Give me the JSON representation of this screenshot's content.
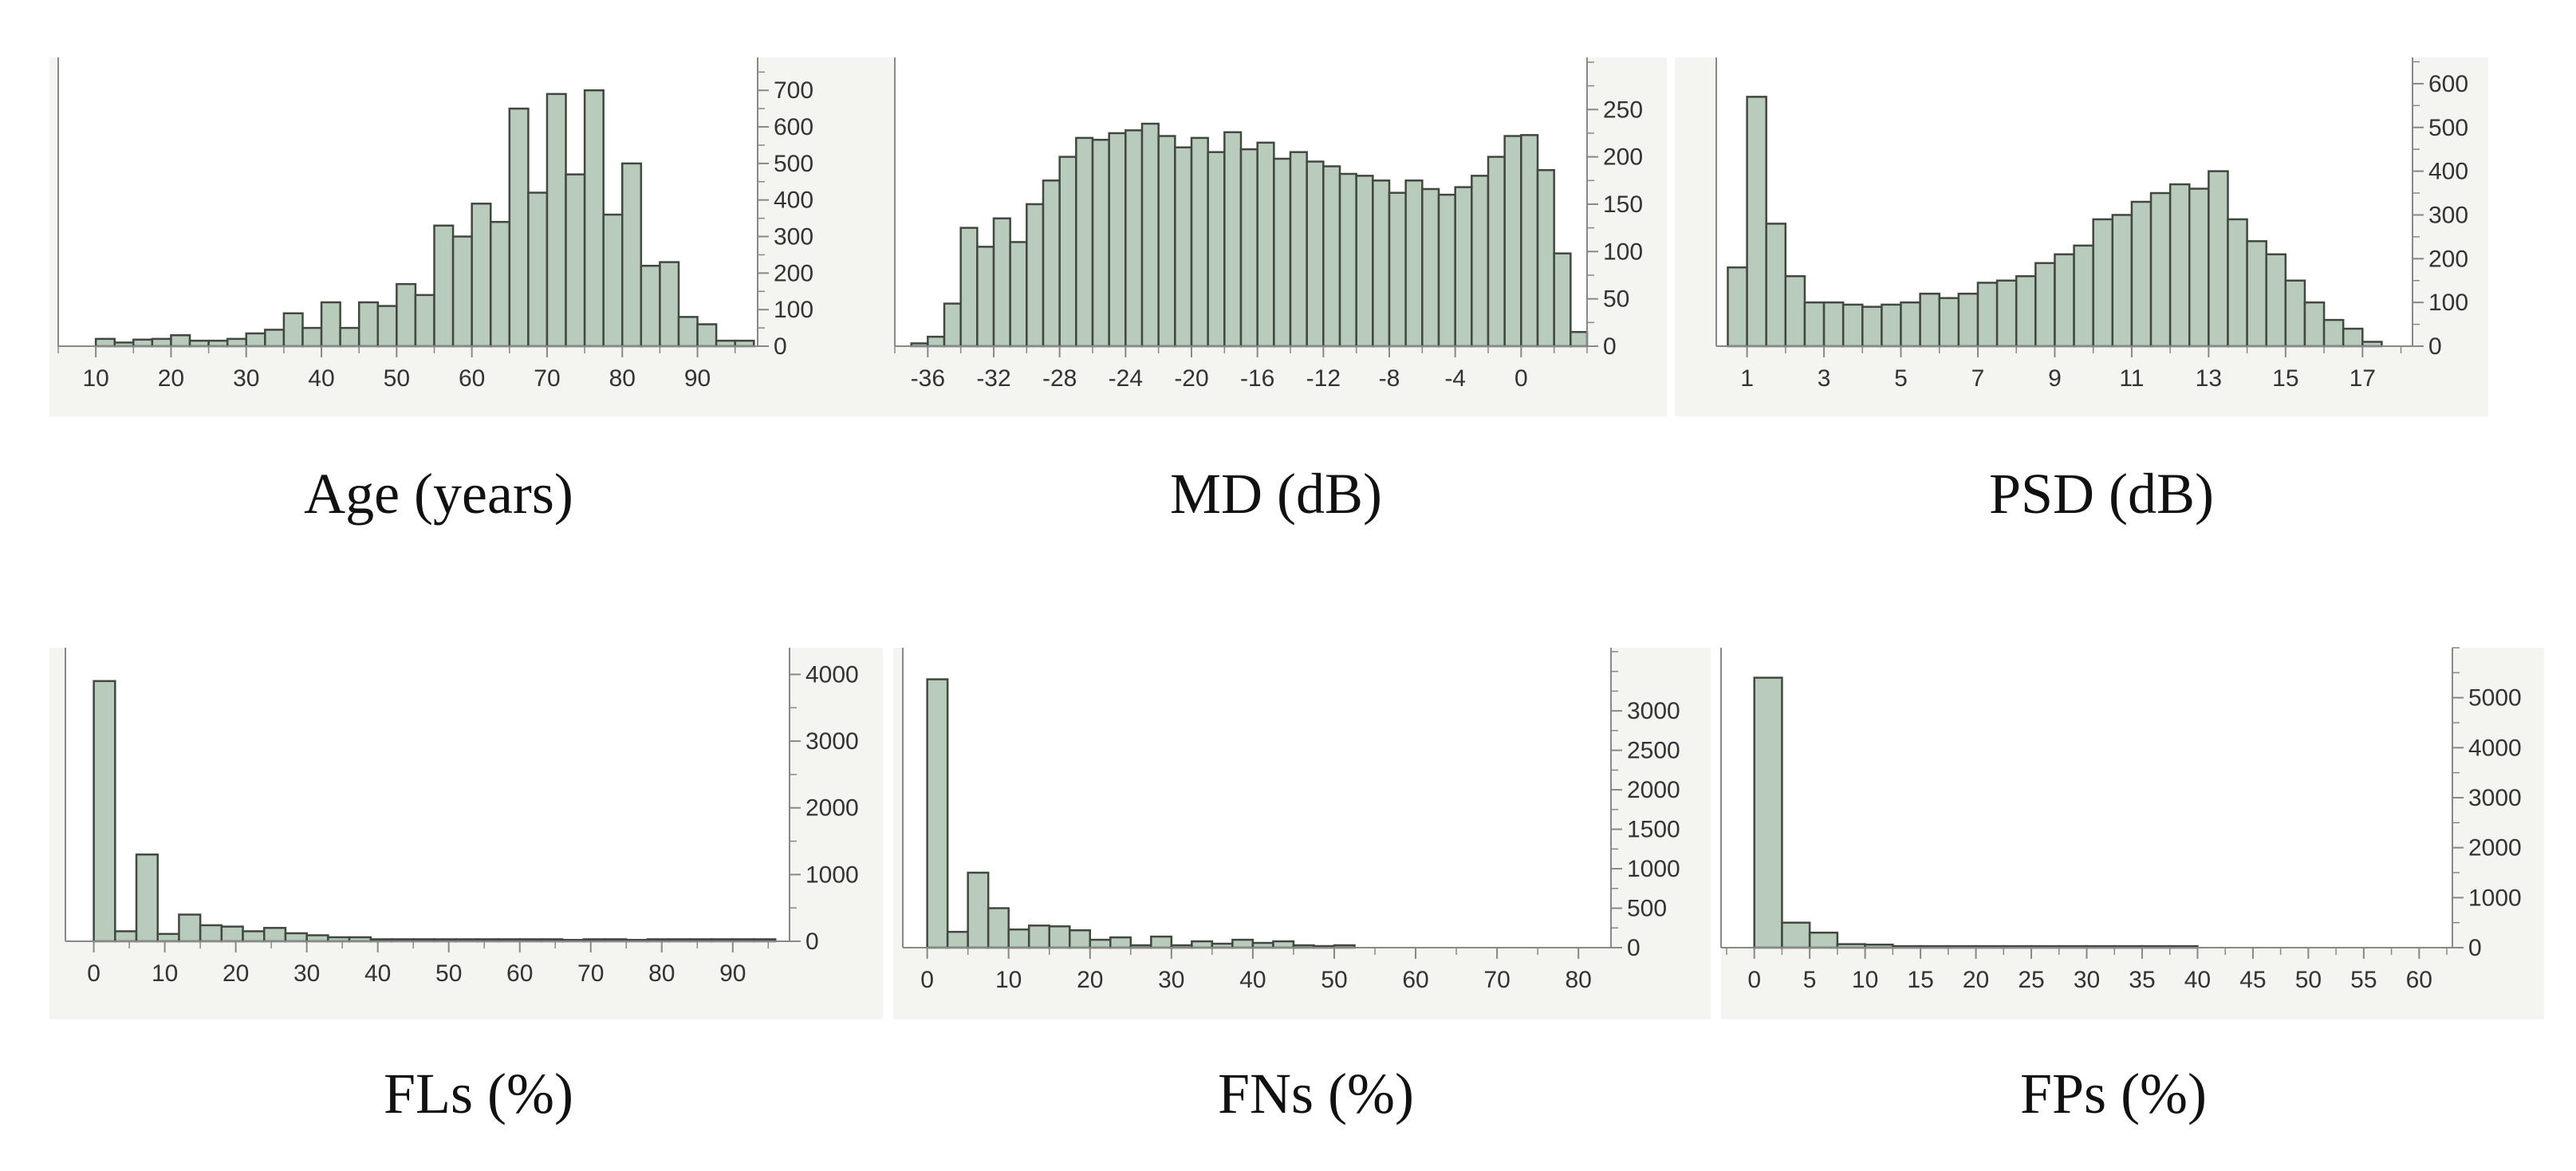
{
  "colors": {
    "bar_fill": "#b9ccbc",
    "bar_stroke": "#404840",
    "axis": "#888888",
    "plot_bg": "#f4f4f0"
  },
  "chart_data": [
    {
      "type": "bar",
      "title": "Age (years)",
      "xlabel": "Age (years)",
      "ylabel": "",
      "bin_width": 2.5,
      "bin_start": 10,
      "values": [
        20,
        10,
        18,
        20,
        30,
        15,
        15,
        20,
        35,
        45,
        90,
        50,
        120,
        50,
        120,
        110,
        170,
        140,
        330,
        300,
        390,
        340,
        650,
        420,
        690,
        470,
        700,
        360,
        500,
        220,
        230,
        80,
        60,
        15,
        15
      ],
      "xlim": [
        5,
        98
      ],
      "ylim": [
        0,
        790
      ],
      "xticks": [
        10,
        20,
        30,
        40,
        50,
        60,
        70,
        80,
        90
      ],
      "yticks": [
        0,
        100,
        200,
        300,
        400,
        500,
        600,
        700
      ],
      "xtick_labels": [
        "10",
        "20",
        "30",
        "40",
        "50",
        "60",
        "70",
        "80",
        "90"
      ],
      "ytick_labels": [
        "0",
        "100",
        "200",
        "300",
        "400",
        "500",
        "600",
        "700"
      ]
    },
    {
      "type": "bar",
      "title": "MD (dB)",
      "xlabel": "MD (dB)",
      "ylabel": "",
      "bin_width": 1,
      "bin_start": -37,
      "values": [
        3,
        10,
        45,
        125,
        105,
        135,
        110,
        150,
        175,
        200,
        220,
        218,
        225,
        228,
        235,
        222,
        210,
        220,
        205,
        226,
        208,
        215,
        198,
        205,
        195,
        190,
        182,
        180,
        175,
        162,
        175,
        166,
        160,
        168,
        180,
        200,
        222,
        223,
        186,
        98,
        15
      ],
      "xlim": [
        -38,
        4
      ],
      "ylim": [
        0,
        305
      ],
      "xticks": [
        -36,
        -32,
        -28,
        -24,
        -20,
        -16,
        -12,
        -8,
        -4,
        0
      ],
      "yticks": [
        0,
        50,
        100,
        150,
        200,
        250
      ],
      "xtick_labels": [
        "-36",
        "-32",
        "-28",
        "-24",
        "-20",
        "-16",
        "-12",
        "-8",
        "-4",
        "0"
      ],
      "ytick_labels": [
        "0",
        "50",
        "100",
        "150",
        "200",
        "250"
      ]
    },
    {
      "type": "bar",
      "title": "PSD (dB)",
      "xlabel": "PSD (dB)",
      "ylabel": "",
      "bin_width": 0.5,
      "bin_start": 0.5,
      "values": [
        180,
        570,
        280,
        160,
        100,
        100,
        95,
        90,
        95,
        100,
        120,
        110,
        120,
        145,
        150,
        160,
        190,
        210,
        230,
        290,
        300,
        330,
        350,
        370,
        360,
        400,
        290,
        240,
        210,
        150,
        100,
        60,
        40,
        10
      ],
      "xlim": [
        0.2,
        18.3
      ],
      "ylim": [
        0,
        660
      ],
      "xticks": [
        1,
        3,
        5,
        7,
        9,
        11,
        13,
        15,
        17
      ],
      "yticks": [
        0,
        100,
        200,
        300,
        400,
        500,
        600
      ],
      "xtick_labels": [
        "1",
        "3",
        "5",
        "7",
        "9",
        "11",
        "13",
        "15",
        "17"
      ],
      "ytick_labels": [
        "0",
        "100",
        "200",
        "300",
        "400",
        "500",
        "600"
      ]
    },
    {
      "type": "bar",
      "title": "FLs (%)",
      "xlabel": "FLs (%)",
      "ylabel": "",
      "bin_width": 3,
      "bin_start": 0,
      "values": [
        3900,
        150,
        1300,
        110,
        400,
        240,
        220,
        150,
        200,
        120,
        90,
        60,
        60,
        30,
        30,
        30,
        30,
        30,
        30,
        30,
        30,
        30,
        20,
        30,
        30,
        20,
        30,
        30,
        30,
        30,
        30,
        30
      ],
      "xlim": [
        -4,
        98
      ],
      "ylim": [
        0,
        4400
      ],
      "xticks": [
        0,
        10,
        20,
        30,
        40,
        50,
        60,
        70,
        80,
        90
      ],
      "yticks": [
        0,
        1000,
        2000,
        3000,
        4000
      ],
      "xtick_labels": [
        "0",
        "10",
        "20",
        "30",
        "40",
        "50",
        "60",
        "70",
        "80",
        "90"
      ],
      "ytick_labels": [
        "0",
        "1000",
        "2000",
        "3000",
        "4000"
      ]
    },
    {
      "type": "bar",
      "title": "FNs (%)",
      "xlabel": "FNs (%)",
      "ylabel": "",
      "bin_width": 2.5,
      "bin_start": 0,
      "values": [
        3400,
        200,
        950,
        500,
        230,
        280,
        270,
        220,
        100,
        130,
        30,
        140,
        30,
        80,
        50,
        100,
        60,
        80,
        30,
        20,
        30
      ],
      "xlim": [
        -3,
        84
      ],
      "ylim": [
        0,
        3800
      ],
      "xticks": [
        0,
        10,
        20,
        30,
        40,
        50,
        60,
        70,
        80
      ],
      "yticks": [
        0,
        500,
        1000,
        1500,
        2000,
        2500,
        3000
      ],
      "xtick_labels": [
        "0",
        "10",
        "20",
        "30",
        "40",
        "50",
        "60",
        "70",
        "80"
      ],
      "ytick_labels": [
        "0",
        "500",
        "1000",
        "1500",
        "2000",
        "2500",
        "3000"
      ]
    },
    {
      "type": "bar",
      "title": "FPs (%)",
      "xlabel": "FPs (%)",
      "ylabel": "",
      "bin_width": 2.5,
      "bin_start": 0,
      "values": [
        5400,
        500,
        300,
        70,
        60,
        30,
        30,
        30,
        30,
        30,
        30,
        30,
        30,
        30,
        30,
        30
      ],
      "xlim": [
        -3,
        63
      ],
      "ylim": [
        0,
        6000
      ],
      "xticks": [
        0,
        5,
        10,
        15,
        20,
        25,
        30,
        35,
        40,
        45,
        50,
        55,
        60
      ],
      "yticks": [
        0,
        1000,
        2000,
        3000,
        4000,
        5000
      ],
      "xtick_labels": [
        "0",
        "5",
        "10",
        "15",
        "20",
        "25",
        "30",
        "35",
        "40",
        "45",
        "50",
        "55",
        "60"
      ],
      "ytick_labels": [
        "0",
        "1000",
        "2000",
        "3000",
        "4000",
        "5000"
      ]
    }
  ]
}
